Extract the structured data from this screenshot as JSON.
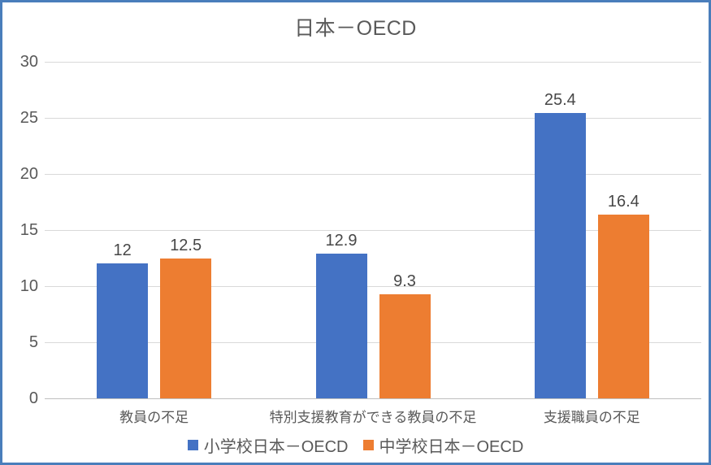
{
  "chart_data": {
    "type": "bar",
    "title": "日本－OECD",
    "categories": [
      "教員の不足",
      "特別支援教育ができる教員の不足",
      "支援職員の不足"
    ],
    "series": [
      {
        "name": "小学校日本－OECD",
        "color": "#4472C4",
        "values": [
          12,
          12.9,
          25.4
        ],
        "labels": [
          "12",
          "12.9",
          "25.4"
        ]
      },
      {
        "name": "中学校日本－OECD",
        "color": "#ED7D31",
        "values": [
          12.5,
          9.3,
          16.4
        ],
        "labels": [
          "12.5",
          "9.3",
          "16.4"
        ]
      }
    ],
    "y_ticks": [
      0,
      5,
      10,
      15,
      20,
      25,
      30
    ],
    "ylim": [
      0,
      30
    ],
    "grid": true,
    "legend_position": "bottom"
  },
  "colors": {
    "frame_border": "#4a7ebb",
    "gridline": "#d9d9d9",
    "axis_line": "#bfbfbf",
    "title_text": "#595959",
    "tick_text": "#595959",
    "category_text": "#595959",
    "value_label_text": "#474747"
  }
}
